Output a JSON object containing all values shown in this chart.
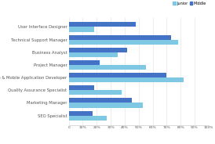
{
  "categories": [
    "User Interface Designer",
    "Technical Support Manager",
    "Business Analyst",
    "Project Manager",
    "Web & Mobile Application Developer",
    "Quality Assurance Specialist",
    "Marketing Manager",
    "SEO Specialist"
  ],
  "junior": [
    18,
    78,
    35,
    55,
    82,
    38,
    53,
    27
  ],
  "middle": [
    48,
    73,
    42,
    22,
    70,
    18,
    45,
    17
  ],
  "junior_color": "#7EC8E3",
  "middle_color": "#4472C4",
  "background_color": "#ffffff",
  "legend_junior": "Junior",
  "legend_middle": "Middle",
  "xlim": [
    0,
    100
  ],
  "xtick_labels": [
    "0",
    "10%",
    "20%",
    "30%",
    "40%",
    "50%",
    "60%",
    "70%",
    "80%",
    "90%",
    "100%"
  ]
}
